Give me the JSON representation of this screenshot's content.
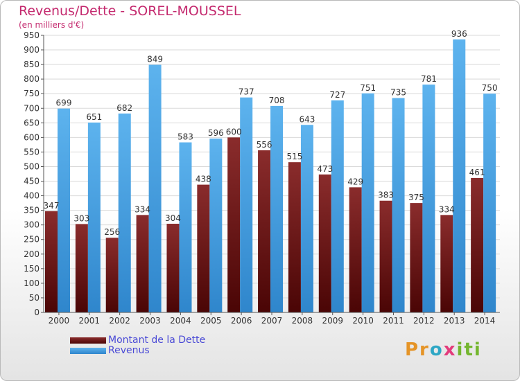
{
  "chart_data": {
    "type": "bar",
    "title": "Revenus/Dette - SOREL-MOUSSEL",
    "subtitle": "(en milliers d'€)",
    "categories": [
      "2000",
      "2001",
      "2002",
      "2003",
      "2004",
      "2005",
      "2006",
      "2007",
      "2008",
      "2009",
      "2010",
      "2011",
      "2012",
      "2013",
      "2014"
    ],
    "series": [
      {
        "name": "Montant de la Dette",
        "color": "#7a1e1e",
        "values": [
          347,
          303,
          256,
          334,
          304,
          438,
          600,
          556,
          515,
          473,
          429,
          383,
          375,
          334,
          461
        ]
      },
      {
        "name": "Revenus",
        "color": "#4aa3e6",
        "values": [
          699,
          651,
          682,
          849,
          583,
          596,
          737,
          708,
          643,
          727,
          751,
          735,
          781,
          936,
          750
        ]
      }
    ],
    "ylim": [
      0,
      950
    ],
    "ytick_step": 50,
    "grid": true,
    "legend": "bottom-left"
  },
  "logo": {
    "parts": [
      "Pr",
      "o",
      "x",
      "iti"
    ]
  }
}
